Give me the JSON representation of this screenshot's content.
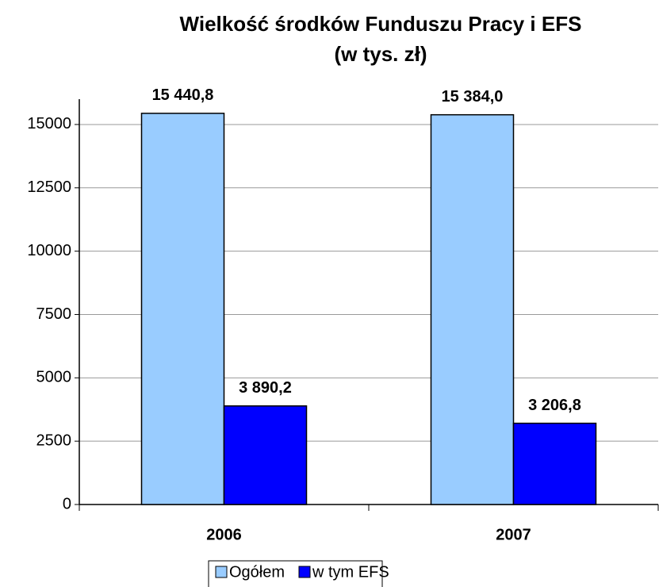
{
  "chart_data": {
    "type": "bar",
    "title": "Wielkość środków Funduszu Pracy i EFS",
    "subtitle": "(w tys. zł)",
    "categories": [
      "2006",
      "2007"
    ],
    "series": [
      {
        "name": "Ogółem",
        "color": "#99ccff",
        "values": [
          15440.8,
          15384.0
        ],
        "value_labels": [
          "15 440,8",
          "15 384,0"
        ]
      },
      {
        "name": "w tym EFS",
        "color": "#0000ff",
        "values": [
          3890.2,
          3206.8
        ],
        "value_labels": [
          "3 890,2",
          "3 206,8"
        ]
      }
    ],
    "ylim": [
      0,
      16000
    ],
    "yticks": [
      0,
      2500,
      5000,
      7500,
      10000,
      12500,
      15000
    ],
    "grid": true,
    "legend": "bottom"
  }
}
